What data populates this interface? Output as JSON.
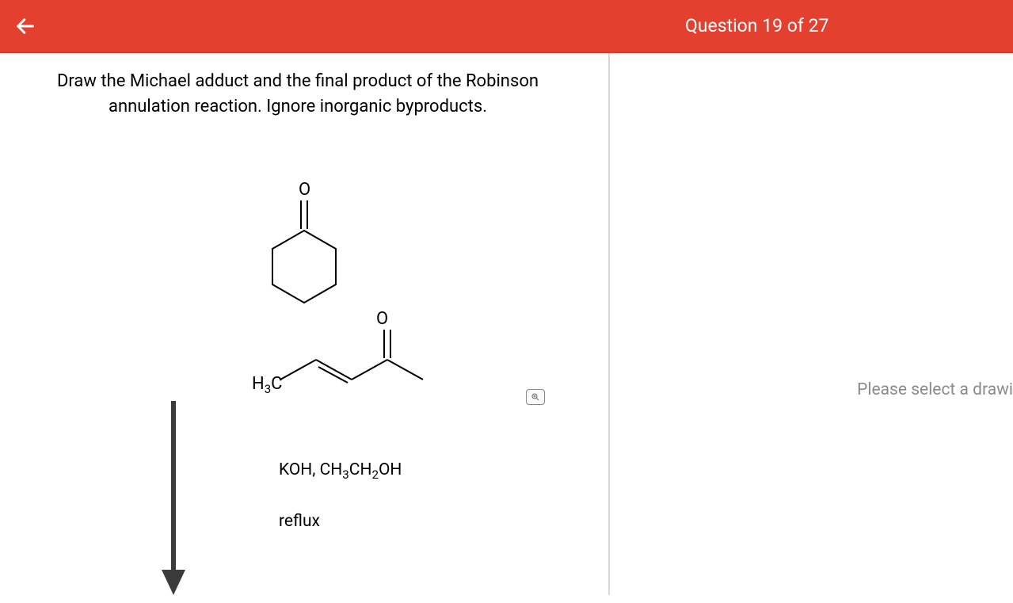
{
  "header": {
    "background_color": "#e4402f",
    "text_color": "#ffffff",
    "question_counter": "Question 19 of 27"
  },
  "question": {
    "prompt": "Draw the Michael adduct and the final product of the Robinson annulation reaction. Ignore inorganic byproducts."
  },
  "molecules": {
    "cyclohexanone": {
      "label_O": "O",
      "stroke": "#000000",
      "stroke_width": 2
    },
    "enone": {
      "label_O": "O",
      "label_CH3": "H₃C",
      "stroke": "#000000",
      "stroke_width": 2
    }
  },
  "reagents": {
    "line1_html": "KOH, CH<sub>3</sub>CH<sub>2</sub>OH",
    "line2": "reflux"
  },
  "arrow": {
    "stroke": "#3b3b3b",
    "stroke_width": 6
  },
  "right_panel": {
    "placeholder": "Please select a drawi"
  },
  "icons": {
    "zoom_glyph": "⊕"
  }
}
